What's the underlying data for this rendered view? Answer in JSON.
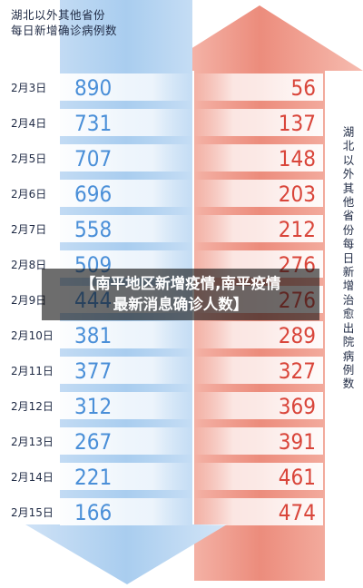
{
  "left_title_line1": "湖北以外其他省份",
  "left_title_line2": "每日新增确诊病例数",
  "right_title": "湖北以外其他省份每日新增治愈出院病例数",
  "banner": {
    "line1": "【南平地区新增疫情,南平疫情",
    "line2": "最新消息确诊人数】"
  },
  "colors": {
    "confirmed": "#4a8fd8",
    "recovered": "#d9453a",
    "date_text": "#1f2a44"
  },
  "chart_data": {
    "type": "table",
    "categories": [
      "2月3日",
      "2月4日",
      "2月5日",
      "2月6日",
      "2月7日",
      "2月8日",
      "2月9日",
      "2月10日",
      "2月11日",
      "2月12日",
      "2月13日",
      "2月14日",
      "2月15日"
    ],
    "series": [
      {
        "name": "湖北以外其他省份每日新增确诊病例数",
        "values": [
          890,
          731,
          707,
          696,
          558,
          509,
          444,
          381,
          377,
          312,
          267,
          221,
          166
        ]
      },
      {
        "name": "湖北以外其他省份每日新增治愈出院病例数",
        "values": [
          56,
          137,
          148,
          203,
          212,
          276,
          276,
          289,
          327,
          369,
          391,
          461,
          474
        ]
      }
    ]
  }
}
